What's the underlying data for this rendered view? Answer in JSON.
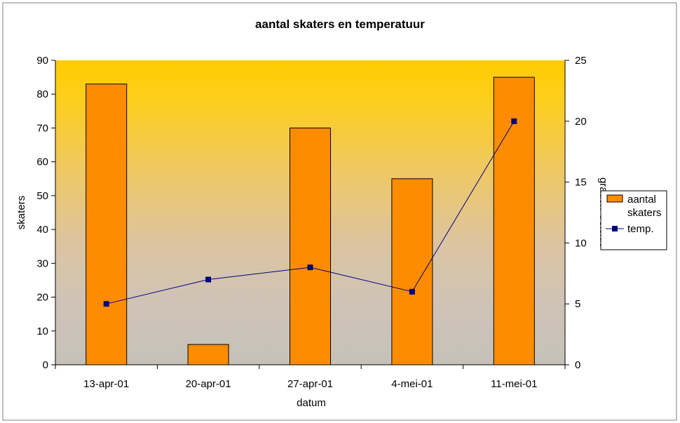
{
  "chart_data": {
    "type": "bar",
    "title": "aantal skaters en temperatuur",
    "xlabel": "datum",
    "ylabel": "skaters",
    "y2label": "graden Celsius",
    "categories": [
      "13-apr-01",
      "20-apr-01",
      "27-apr-01",
      "4-mei-01",
      "11-mei-01"
    ],
    "ylim": [
      0,
      90
    ],
    "yticks": [
      0,
      10,
      20,
      30,
      40,
      50,
      60,
      70,
      80,
      90
    ],
    "y2lim": [
      0,
      25
    ],
    "y2ticks": [
      0,
      5,
      10,
      15,
      20,
      25
    ],
    "series": [
      {
        "name": "aantal skaters",
        "type": "bar",
        "axis": "left",
        "values": [
          83,
          6,
          70,
          55,
          85
        ],
        "color": "#FF8C00"
      },
      {
        "name": "temp.",
        "type": "line",
        "axis": "right",
        "values": [
          5,
          7,
          8,
          6,
          20
        ],
        "color": "#000080"
      }
    ],
    "legend": {
      "position": "right",
      "entries": [
        "aantal skaters",
        "temp."
      ]
    },
    "grid": false,
    "background": "gradient-yellow-to-grey"
  }
}
